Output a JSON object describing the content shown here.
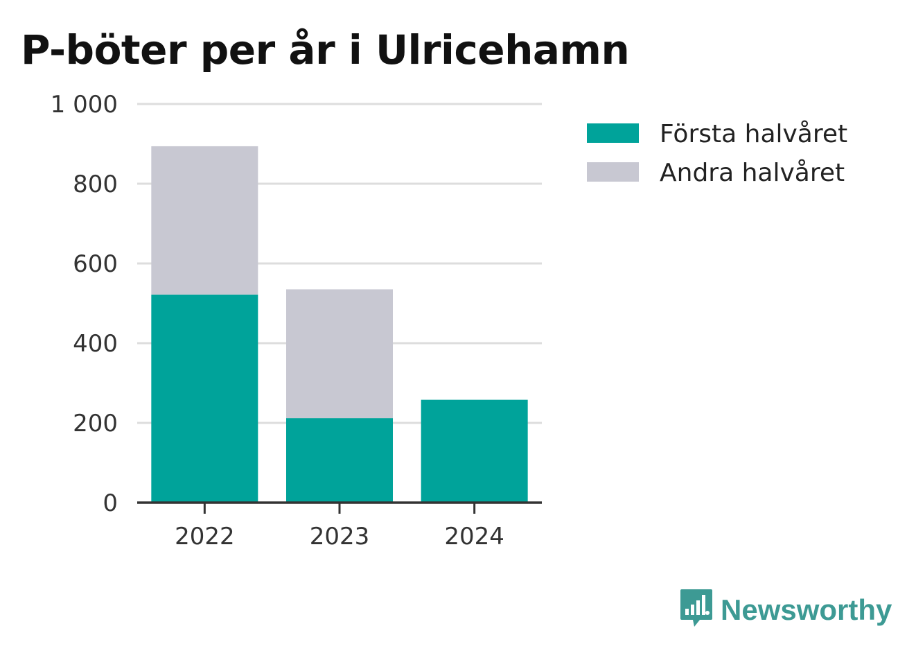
{
  "colors": {
    "first_half": "#00a39a",
    "second_half": "#c8c8d2",
    "grid": "#dddddd",
    "axis": "#333333",
    "brand": "#3d9a94"
  },
  "brand": {
    "name": "Newsworthy",
    "icon": "newsworthy-logo-icon"
  },
  "chart_data": {
    "type": "bar",
    "stacked": true,
    "title": "P-böter per år i Ulricehamn",
    "xlabel": "",
    "ylabel": "",
    "categories": [
      "2022",
      "2023",
      "2024"
    ],
    "series": [
      {
        "name": "Första halvåret",
        "values": [
          522,
          212,
          258
        ]
      },
      {
        "name": "Andra halvåret",
        "values": [
          372,
          323,
          0
        ]
      }
    ],
    "ylim": [
      0,
      1000
    ],
    "yticks": [
      0,
      200,
      400,
      600,
      800,
      1000
    ],
    "ytick_labels": [
      "0",
      "200",
      "400",
      "600",
      "800",
      "1 000"
    ],
    "grid": true,
    "legend": "right"
  }
}
